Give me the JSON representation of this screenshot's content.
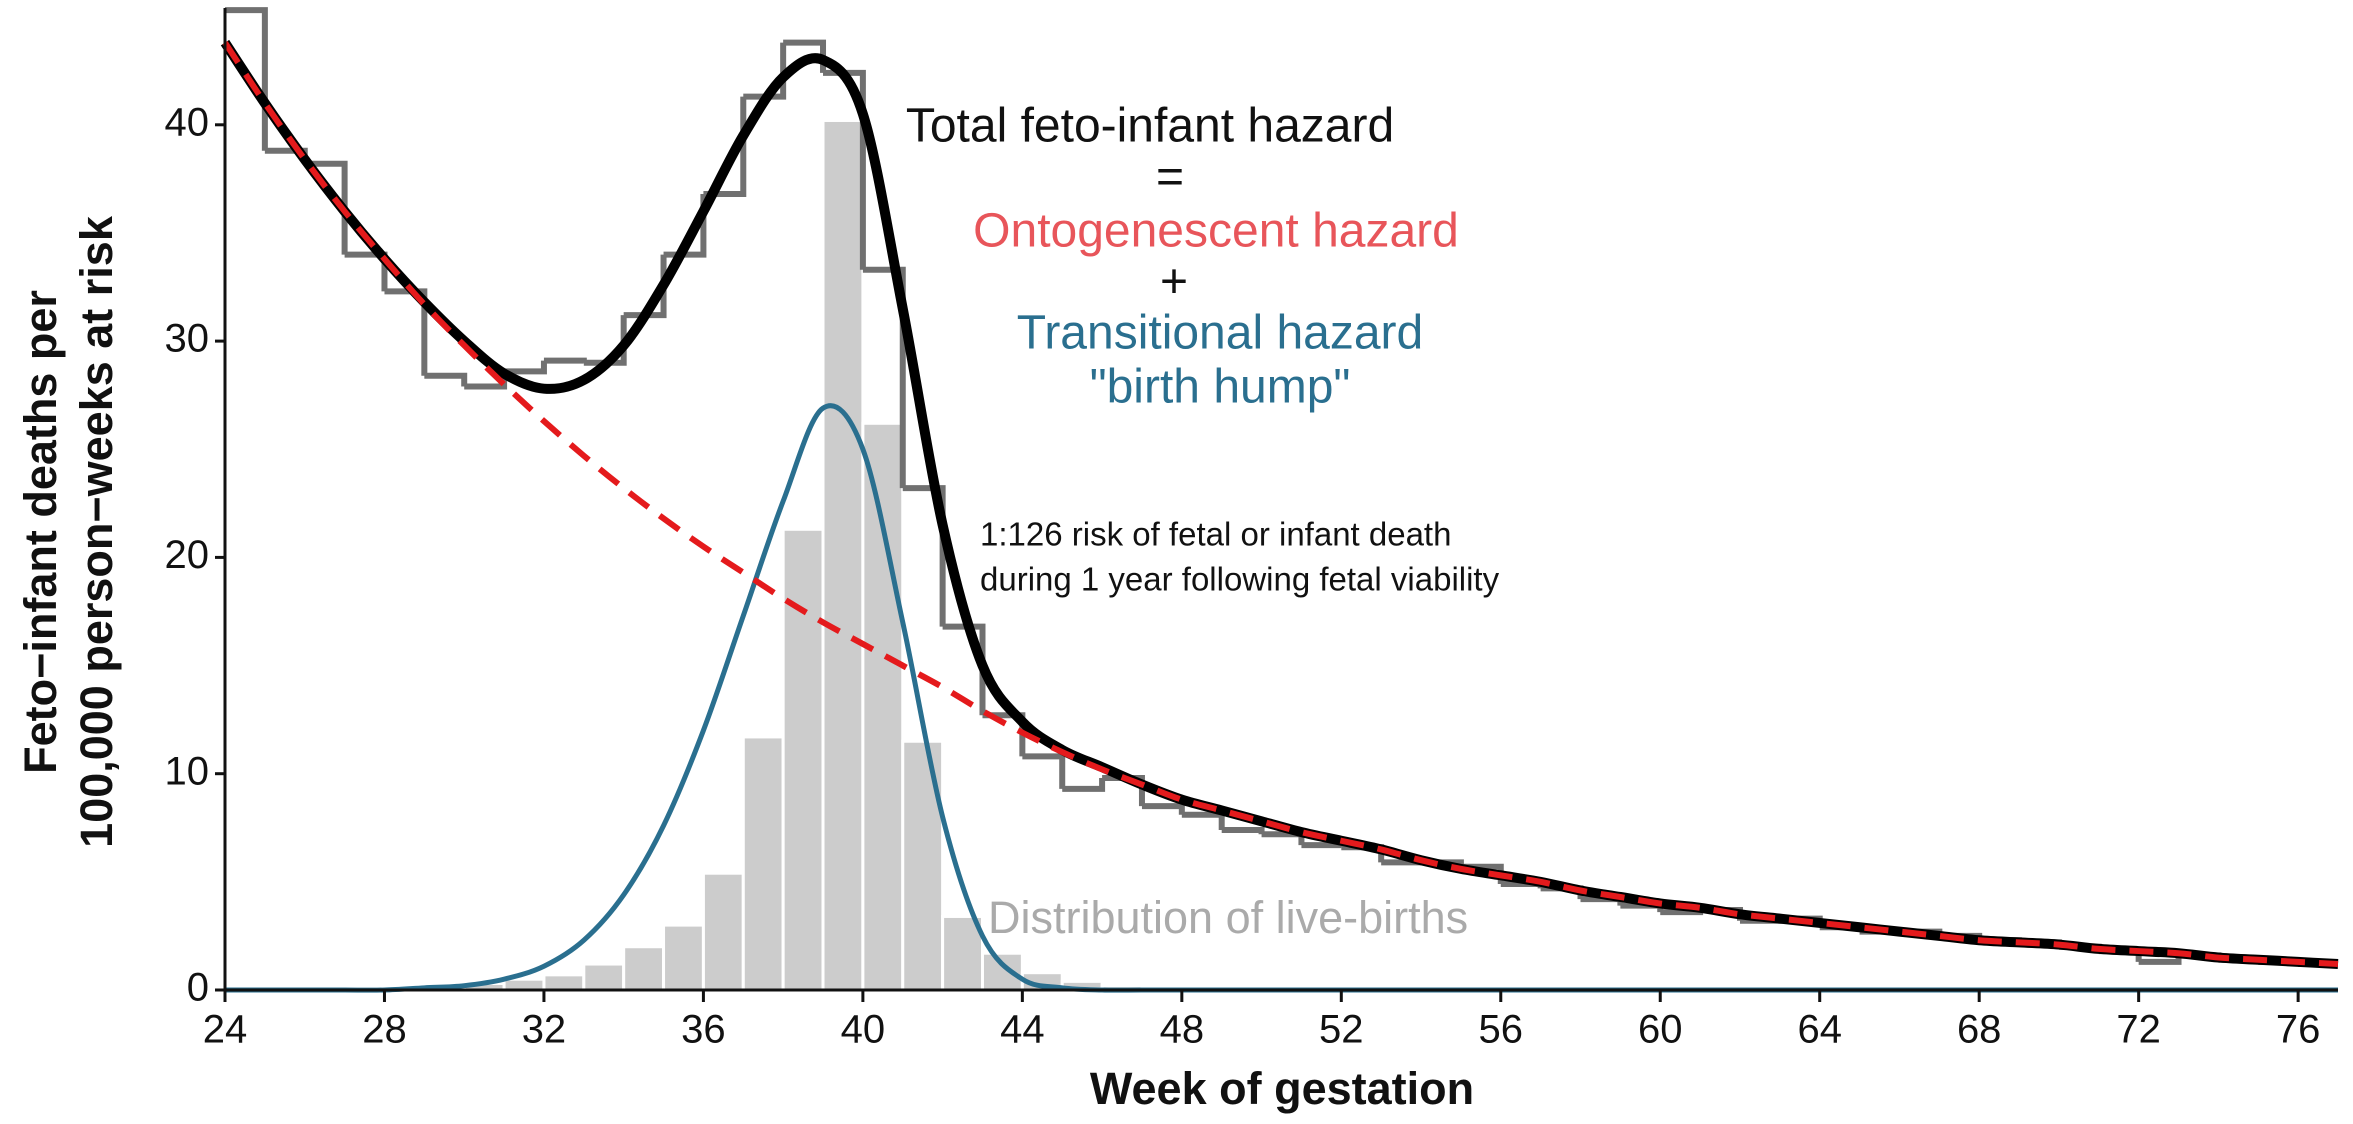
{
  "chart_data": {
    "type": "combo",
    "x_label": "Week of gestation",
    "y_label": [
      "Feto−infant deaths per",
      "100,000 person−weeks at risk"
    ],
    "xlim": [
      24,
      77
    ],
    "ylim": [
      0,
      45.4
    ],
    "xticks": [
      24,
      28,
      32,
      36,
      40,
      44,
      48,
      52,
      56,
      60,
      64,
      68,
      72,
      76
    ],
    "yticks": [
      0,
      10,
      20,
      30,
      40
    ],
    "x": [
      24,
      25,
      26,
      27,
      28,
      29,
      30,
      31,
      32,
      33,
      34,
      35,
      36,
      37,
      38,
      39,
      40,
      41,
      42,
      43,
      44,
      45,
      46,
      47,
      48,
      49,
      50,
      51,
      52,
      53,
      54,
      55,
      56,
      57,
      58,
      59,
      60,
      61,
      62,
      63,
      64,
      65,
      66,
      67,
      68,
      69,
      70,
      71,
      72,
      73,
      74,
      75,
      76,
      77
    ],
    "layers": [
      {
        "type": "bar",
        "color": "#cccccc",
        "bins": [
          30,
          31,
          32,
          33,
          34,
          35,
          36,
          37,
          38,
          39,
          40,
          41,
          42,
          43,
          44,
          45,
          46,
          47
        ],
        "values": [
          0.3,
          0.5,
          0.7,
          1.2,
          2.0,
          3.0,
          5.4,
          11.7,
          21.3,
          40.2,
          26.2,
          11.5,
          3.4,
          1.7,
          0.8,
          0.4,
          0.2
        ]
      },
      {
        "type": "step",
        "color": "#707070",
        "bins": [
          24,
          25,
          26,
          27,
          28,
          29,
          30,
          31,
          32,
          33,
          34,
          35,
          36,
          37,
          38,
          39,
          40,
          41,
          42,
          43,
          44,
          45,
          46,
          47,
          48,
          49,
          50,
          51,
          52,
          53,
          54,
          55,
          56,
          57,
          58,
          59,
          60,
          61,
          62,
          63,
          64,
          65,
          66,
          67,
          68,
          69,
          70,
          71,
          72,
          73,
          74,
          75,
          76,
          77
        ],
        "values": [
          45.3,
          38.8,
          38.2,
          34.0,
          32.3,
          28.4,
          27.9,
          28.6,
          29.1,
          29.0,
          31.2,
          34.0,
          36.8,
          41.3,
          43.8,
          42.4,
          33.3,
          23.2,
          16.8,
          12.7,
          10.8,
          9.3,
          9.8,
          8.5,
          8.1,
          7.4,
          7.2,
          6.7,
          6.6,
          5.9,
          5.9,
          5.7,
          4.9,
          4.7,
          4.2,
          3.9,
          3.6,
          3.7,
          3.2,
          3.3,
          2.9,
          2.7,
          2.7,
          2.5,
          2.3,
          2.2,
          2.0,
          1.8,
          1.3,
          1.6,
          1.4,
          1.3,
          1.2
        ]
      },
      {
        "type": "line",
        "name": "Transitional hazard",
        "color": "#2a6f8f",
        "dash": false,
        "values": [
          0,
          0,
          0,
          0,
          0,
          0.1,
          0.2,
          0.5,
          1.1,
          2.3,
          4.4,
          7.6,
          12.0,
          17.3,
          22.6,
          26.9,
          25.0,
          17.0,
          8.0,
          2.5,
          0.5,
          0.1,
          0,
          0,
          0,
          0,
          0,
          0,
          0,
          0,
          0,
          0,
          0,
          0,
          0,
          0,
          0,
          0,
          0,
          0,
          0,
          0,
          0,
          0,
          0,
          0,
          0,
          0,
          0,
          0,
          0,
          0,
          0,
          0
        ]
      },
      {
        "type": "line",
        "name": "Total feto-infant hazard",
        "color": "#000000",
        "dash": false,
        "values": [
          43.8,
          41.0,
          38.4,
          36.0,
          33.8,
          31.8,
          30.0,
          28.5,
          27.8,
          28.2,
          29.8,
          32.6,
          36.0,
          39.5,
          42.2,
          43.0,
          40.5,
          31.5,
          21.5,
          15.0,
          12.4,
          11.1,
          10.3,
          9.5,
          8.8,
          8.3,
          7.8,
          7.3,
          6.9,
          6.5,
          6.0,
          5.6,
          5.3,
          5.0,
          4.6,
          4.3,
          4.0,
          3.8,
          3.5,
          3.3,
          3.1,
          2.9,
          2.7,
          2.5,
          2.3,
          2.2,
          2.1,
          1.9,
          1.8,
          1.7,
          1.5,
          1.4,
          1.3,
          1.2
        ]
      },
      {
        "type": "line",
        "name": "Ontogenescent hazard",
        "color": "#e41a1c",
        "dash": true,
        "values": [
          43.8,
          41.0,
          38.4,
          36.0,
          33.8,
          31.7,
          29.8,
          28.0,
          26.3,
          24.7,
          23.2,
          21.8,
          20.5,
          19.3,
          18.1,
          17.0,
          16.0,
          15.0,
          14.0,
          12.9,
          11.9,
          11.0,
          10.2,
          9.5,
          8.8,
          8.3,
          7.8,
          7.3,
          6.9,
          6.5,
          6.0,
          5.6,
          5.3,
          5.0,
          4.6,
          4.3,
          4.0,
          3.8,
          3.5,
          3.3,
          3.1,
          2.9,
          2.7,
          2.5,
          2.3,
          2.2,
          2.1,
          1.9,
          1.8,
          1.7,
          1.5,
          1.4,
          1.3,
          1.2
        ]
      }
    ],
    "annotations": [
      {
        "text": "Total feto-infant hazard",
        "color": "#111111"
      },
      {
        "text": "=",
        "color": "#111111"
      },
      {
        "text": "Ontogenescent hazard",
        "color": "#e8555a"
      },
      {
        "text": "+",
        "color": "#111111"
      },
      {
        "text": "Transitional hazard",
        "color": "#2a6f8f"
      },
      {
        "text": "\"birth hump\"",
        "color": "#2a6f8f"
      },
      {
        "text": "1:126 risk of fetal or infant death",
        "color": "#111111"
      },
      {
        "text": "during 1 year following fetal viability",
        "color": "#111111"
      },
      {
        "text": "Distribution of live-births",
        "color": "#aaaaaa"
      }
    ]
  }
}
